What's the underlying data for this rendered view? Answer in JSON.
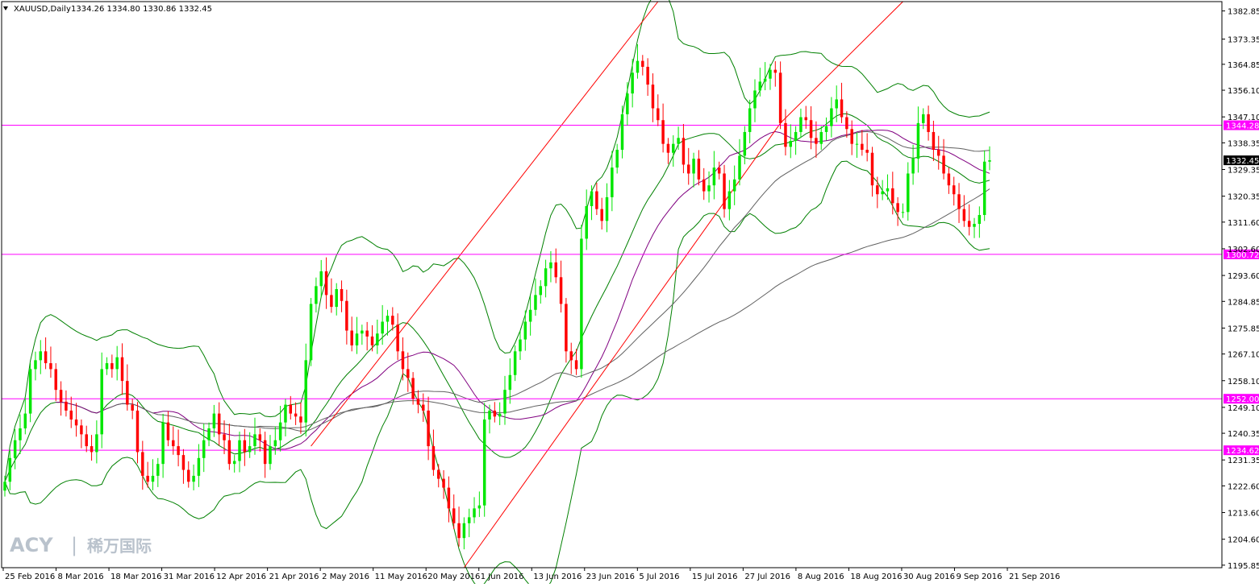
{
  "window": {
    "symbol_label": "XAUUSD,Daily",
    "ohlc_label": "1334.26 1334.80 1330.86 1332.45",
    "menu_icon": "triangle-down-icon"
  },
  "watermark": {
    "brand": "ACY",
    "separator": "|",
    "chinese": "稀万国际"
  },
  "colors": {
    "background": "#ffffff",
    "bull_candle": "#00e600",
    "bear_candle": "#ff0000",
    "bollinger": "#008000",
    "ma_short": "#800080",
    "ma_long": "#606060",
    "trendline": "#ff0000",
    "level_line": "#ff00ff",
    "axis": "#000000"
  },
  "chart_data": {
    "type": "candlestick",
    "title": "XAUUSD,Daily",
    "ylim": [
      1195,
      1386
    ],
    "y_ticks": [
      "1382.85",
      "1373.35",
      "1364.85",
      "1356.10",
      "1347.10",
      "1338.35",
      "1329.35",
      "1320.35",
      "1311.60",
      "1302.60",
      "1293.60",
      "1284.85",
      "1275.85",
      "1267.10",
      "1258.10",
      "1249.10",
      "1240.35",
      "1231.35",
      "1222.60",
      "1213.60",
      "1204.60",
      "1195.85"
    ],
    "x_labels": [
      "25 Feb 2016",
      "8 Mar 2016",
      "18 Mar 2016",
      "31 Mar 2016",
      "12 Apr 2016",
      "21 Apr 2016",
      "2 May 2016",
      "11 May 2016",
      "20 May 2016",
      "1 Jun 2016",
      "13 Jun 2016",
      "23 Jun 2016",
      "5 Jul 2016",
      "15 Jul 2016",
      "27 Jul 2016",
      "8 Aug 2016",
      "18 Aug 2016",
      "30 Aug 2016",
      "9 Sep 2016",
      "21 Sep 2016"
    ],
    "levels": [
      {
        "value": 1344.28,
        "label": "1344.28"
      },
      {
        "value": 1300.72,
        "label": "1300.72"
      },
      {
        "value": 1252.0,
        "label": "1252.00"
      },
      {
        "value": 1234.62,
        "label": "1234.62"
      }
    ],
    "current_price": {
      "value": 1332.45,
      "label": "1332.45"
    },
    "closes": [
      1224,
      1232,
      1238,
      1242,
      1247,
      1262,
      1265,
      1268,
      1264,
      1262,
      1255,
      1251,
      1248,
      1245,
      1243,
      1240,
      1236,
      1234,
      1240,
      1262,
      1264,
      1262,
      1266,
      1258,
      1250,
      1248,
      1234,
      1226,
      1224,
      1226,
      1230,
      1244,
      1238,
      1236,
      1233,
      1228,
      1224,
      1226,
      1232,
      1238,
      1242,
      1247,
      1240,
      1238,
      1230,
      1231,
      1238,
      1234,
      1236,
      1240,
      1238,
      1230,
      1236,
      1238,
      1244,
      1250,
      1247,
      1246,
      1244,
      1265,
      1284,
      1290,
      1295,
      1287,
      1283,
      1289,
      1285,
      1275,
      1270,
      1274,
      1275,
      1273,
      1270,
      1274,
      1278,
      1280,
      1277,
      1268,
      1262,
      1259,
      1252,
      1250,
      1248,
      1236,
      1228,
      1225,
      1222,
      1215,
      1210,
      1205,
      1210,
      1212,
      1215,
      1216,
      1245,
      1248,
      1246,
      1247,
      1255,
      1260,
      1268,
      1272,
      1278,
      1282,
      1287,
      1290,
      1296,
      1298,
      1293,
      1284,
      1268,
      1265,
      1262,
      1306,
      1317,
      1322,
      1316,
      1312,
      1320,
      1330,
      1336,
      1348,
      1355,
      1362,
      1366,
      1364,
      1358,
      1350,
      1346,
      1338,
      1335,
      1338,
      1340,
      1331,
      1328,
      1333,
      1326,
      1322,
      1324,
      1330,
      1328,
      1316,
      1322,
      1326,
      1334,
      1342,
      1350,
      1356,
      1359,
      1360,
      1363,
      1362,
      1345,
      1337,
      1339,
      1342,
      1347,
      1346,
      1340,
      1338,
      1342,
      1344,
      1350,
      1353,
      1347,
      1343,
      1338,
      1338,
      1336,
      1335,
      1324,
      1321,
      1322,
      1323,
      1318,
      1315,
      1315,
      1328,
      1333,
      1345,
      1348,
      1342,
      1336,
      1334,
      1328,
      1324,
      1321,
      1316,
      1312,
      1310,
      1311,
      1314,
      1332,
      1332.45
    ]
  }
}
